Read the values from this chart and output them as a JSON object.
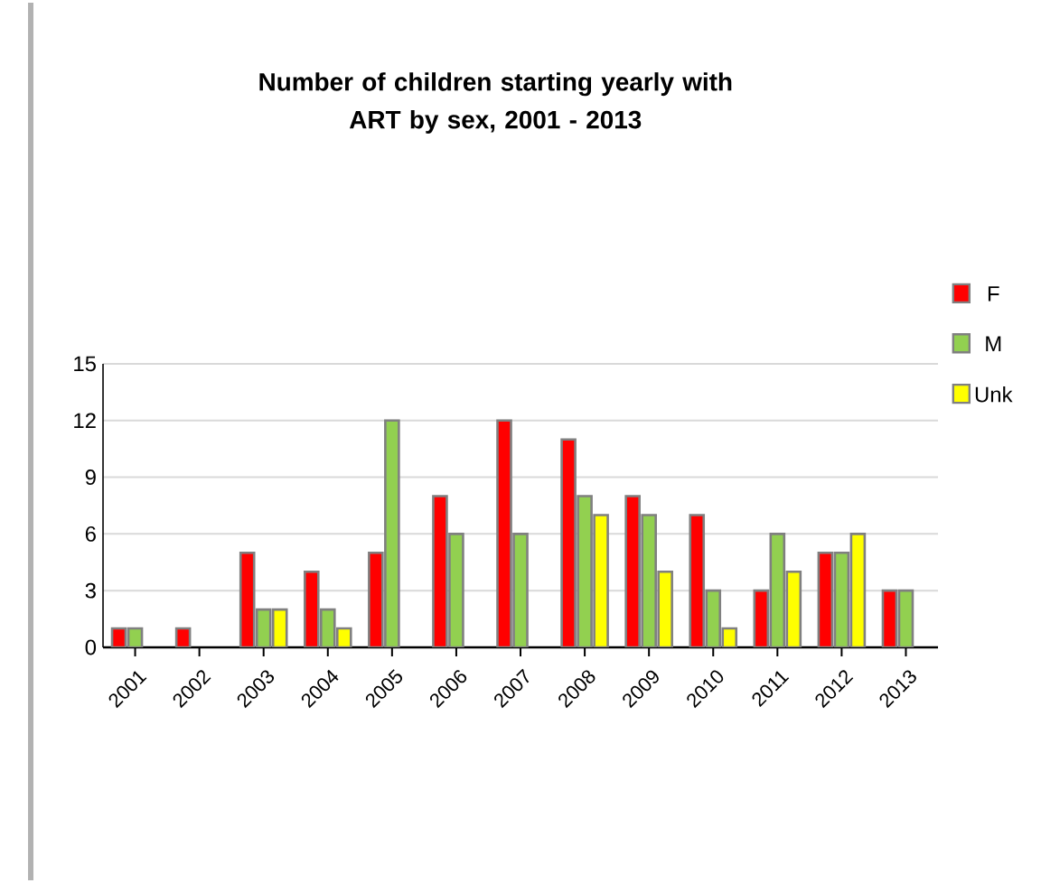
{
  "chart_data": {
    "type": "bar",
    "title": "Number of children starting yearly with\nART by sex, 2001 - 2013",
    "categories": [
      "2001",
      "2002",
      "2003",
      "2004",
      "2005",
      "2006",
      "2007",
      "2008",
      "2009",
      "2010",
      "2011",
      "2012",
      "2013"
    ],
    "series": [
      {
        "name": "F",
        "color": "#ff0000",
        "values": [
          1,
          1,
          5,
          4,
          5,
          8,
          12,
          11,
          8,
          7,
          3,
          5,
          3
        ]
      },
      {
        "name": "M",
        "color": "#92d050",
        "values": [
          1,
          null,
          2,
          2,
          12,
          6,
          6,
          8,
          7,
          3,
          6,
          5,
          3
        ]
      },
      {
        "name": "Unk",
        "color": "#ffff00",
        "values": [
          null,
          null,
          2,
          1,
          null,
          null,
          null,
          7,
          4,
          1,
          4,
          6,
          null
        ]
      }
    ],
    "ylim": [
      0,
      15
    ],
    "yticks": [
      0,
      3,
      6,
      9,
      12,
      15
    ],
    "grid": "y",
    "legend": "right"
  }
}
